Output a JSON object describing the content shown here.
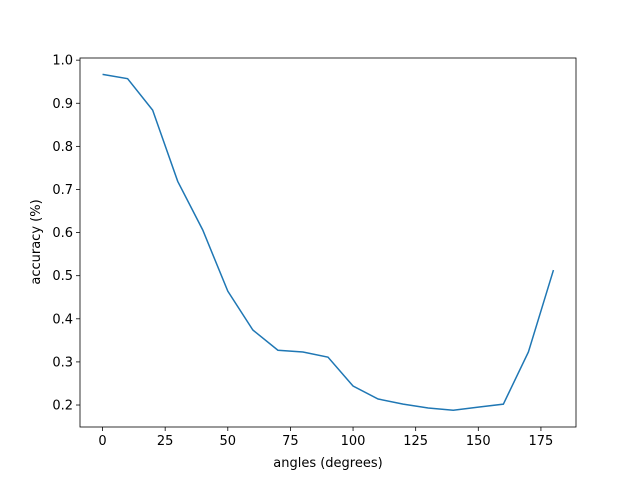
{
  "chart_data": {
    "type": "line",
    "xlabel": "angles (degrees)",
    "ylabel": "accuracy (%)",
    "x": [
      0,
      10,
      20,
      30,
      40,
      50,
      60,
      70,
      80,
      90,
      100,
      110,
      120,
      130,
      140,
      150,
      160,
      170,
      180
    ],
    "series": [
      {
        "name": "accuracy",
        "color": "#1f77b4",
        "values": [
          0.967,
          0.957,
          0.884,
          0.719,
          0.606,
          0.464,
          0.374,
          0.327,
          0.323,
          0.311,
          0.244,
          0.214,
          0.202,
          0.193,
          0.188,
          0.195,
          0.202,
          0.323,
          0.513
        ]
      }
    ],
    "xlim": [
      -9,
      189
    ],
    "xticks": [
      0,
      25,
      50,
      75,
      100,
      125,
      150,
      175
    ],
    "ylim": [
      0.149,
      1.005
    ],
    "yticks": [
      0.2,
      0.3,
      0.4,
      0.5,
      0.6,
      0.7,
      0.8,
      0.9,
      {
        "value": 1.0,
        "label": "1.0"
      }
    ],
    "grid": false
  }
}
